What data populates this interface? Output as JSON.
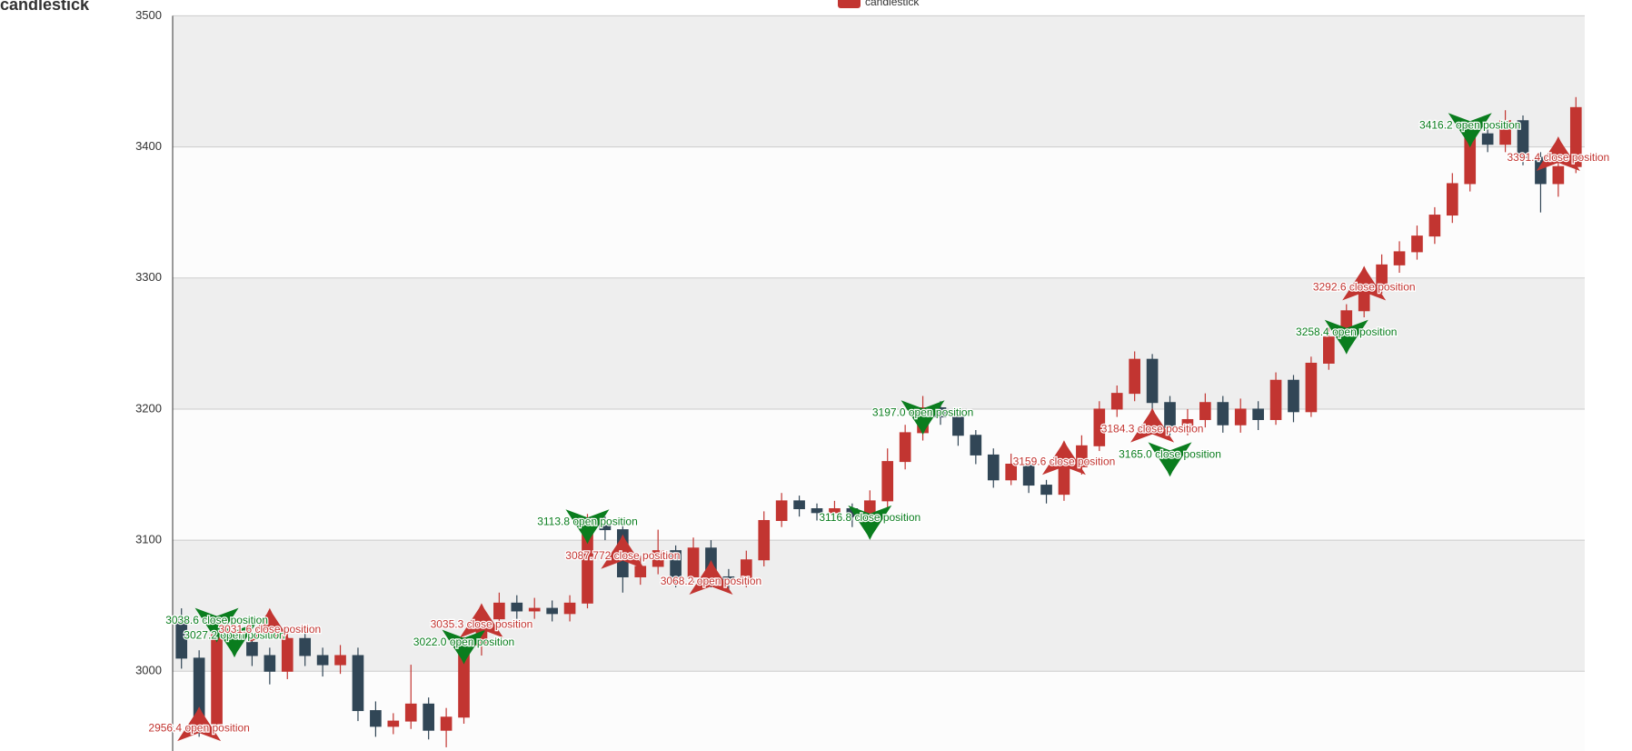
{
  "chart_data": {
    "type": "candlestick",
    "title": "candlestick",
    "legend": "top",
    "ylim": [
      2900,
      3500
    ],
    "yticks": [
      3000,
      3100,
      3200,
      3300,
      3400,
      3500
    ],
    "grid": true,
    "split_area": [
      "#eeeeee",
      "#fcfcfc"
    ],
    "series": [
      {
        "name": "candlestick",
        "color": "#c23531",
        "up_color": "#c23531",
        "down_color": "#314656",
        "values": [
          [
            3040,
            3048,
            3002,
            3010
          ],
          [
            3010,
            3016,
            2950,
            2960
          ],
          [
            2960,
            3036,
            2954,
            3030
          ],
          [
            3030,
            3040,
            3015,
            3022
          ],
          [
            3022,
            3030,
            3004,
            3012
          ],
          [
            3012,
            3018,
            2990,
            3000
          ],
          [
            3000,
            3033,
            2994,
            3025
          ],
          [
            3025,
            3031,
            3004,
            3012
          ],
          [
            3012,
            3018,
            2996,
            3005
          ],
          [
            3005,
            3020,
            2998,
            3012
          ],
          [
            3012,
            3018,
            2962,
            2970
          ],
          [
            2970,
            2977,
            2950,
            2958
          ],
          [
            2958,
            2968,
            2952,
            2962
          ],
          [
            2962,
            3005,
            2956,
            2975
          ],
          [
            2975,
            2980,
            2948,
            2955
          ],
          [
            2955,
            2972,
            2942,
            2965
          ],
          [
            2965,
            3026,
            2960,
            3020
          ],
          [
            3020,
            3048,
            3012,
            3040
          ],
          [
            3040,
            3060,
            3034,
            3052
          ],
          [
            3052,
            3058,
            3040,
            3046
          ],
          [
            3046,
            3056,
            3040,
            3048
          ],
          [
            3048,
            3054,
            3038,
            3044
          ],
          [
            3044,
            3058,
            3038,
            3052
          ],
          [
            3052,
            3120,
            3048,
            3112
          ],
          [
            3112,
            3118,
            3100,
            3108
          ],
          [
            3108,
            3112,
            3060,
            3072
          ],
          [
            3072,
            3088,
            3066,
            3080
          ],
          [
            3080,
            3108,
            3074,
            3092
          ],
          [
            3092,
            3096,
            3064,
            3072
          ],
          [
            3072,
            3102,
            3066,
            3094
          ],
          [
            3094,
            3100,
            3064,
            3072
          ],
          [
            3072,
            3078,
            3062,
            3070
          ],
          [
            3070,
            3092,
            3064,
            3085
          ],
          [
            3085,
            3122,
            3080,
            3115
          ],
          [
            3115,
            3136,
            3110,
            3130
          ],
          [
            3130,
            3134,
            3118,
            3124
          ],
          [
            3124,
            3128,
            3115,
            3121
          ],
          [
            3121,
            3130,
            3116,
            3124
          ],
          [
            3124,
            3128,
            3110,
            3118
          ],
          [
            3118,
            3138,
            3112,
            3130
          ],
          [
            3130,
            3170,
            3124,
            3160
          ],
          [
            3160,
            3188,
            3154,
            3182
          ],
          [
            3182,
            3210,
            3176,
            3201
          ],
          [
            3201,
            3206,
            3188,
            3194
          ],
          [
            3194,
            3198,
            3172,
            3180
          ],
          [
            3180,
            3184,
            3158,
            3165
          ],
          [
            3165,
            3170,
            3140,
            3146
          ],
          [
            3146,
            3166,
            3142,
            3158
          ],
          [
            3158,
            3162,
            3136,
            3142
          ],
          [
            3142,
            3146,
            3128,
            3135
          ],
          [
            3135,
            3162,
            3130,
            3156
          ],
          [
            3156,
            3180,
            3150,
            3172
          ],
          [
            3172,
            3206,
            3168,
            3200
          ],
          [
            3200,
            3218,
            3194,
            3212
          ],
          [
            3212,
            3244,
            3206,
            3238
          ],
          [
            3238,
            3242,
            3198,
            3205
          ],
          [
            3205,
            3210,
            3180,
            3186
          ],
          [
            3186,
            3200,
            3180,
            3192
          ],
          [
            3192,
            3212,
            3186,
            3205
          ],
          [
            3205,
            3210,
            3182,
            3188
          ],
          [
            3188,
            3208,
            3182,
            3200
          ],
          [
            3200,
            3206,
            3184,
            3192
          ],
          [
            3192,
            3228,
            3188,
            3222
          ],
          [
            3222,
            3226,
            3190,
            3198
          ],
          [
            3198,
            3240,
            3194,
            3235
          ],
          [
            3235,
            3262,
            3230,
            3255
          ],
          [
            3255,
            3280,
            3250,
            3275
          ],
          [
            3275,
            3302,
            3270,
            3294
          ],
          [
            3294,
            3318,
            3288,
            3310
          ],
          [
            3310,
            3328,
            3304,
            3320
          ],
          [
            3320,
            3340,
            3314,
            3332
          ],
          [
            3332,
            3354,
            3326,
            3348
          ],
          [
            3348,
            3380,
            3342,
            3372
          ],
          [
            3372,
            3418,
            3366,
            3410
          ],
          [
            3410,
            3414,
            3396,
            3402
          ],
          [
            3402,
            3428,
            3396,
            3420
          ],
          [
            3420,
            3424,
            3386,
            3392
          ],
          [
            3392,
            3396,
            3350,
            3372
          ],
          [
            3372,
            3392,
            3362,
            3385
          ],
          [
            3385,
            3438,
            3380,
            3430
          ]
        ]
      }
    ],
    "markers": [
      {
        "index": 1,
        "value": 2956.4,
        "label": "2956.4 open position",
        "color": "#c23531",
        "symbol": "arrow-up"
      },
      {
        "index": 2,
        "value": 3038.6,
        "label": "3038.6 close position",
        "color": "#0a7d1e",
        "symbol": "arrow-down"
      },
      {
        "index": 3,
        "value": 3027.2,
        "label": "3027.2 open position",
        "color": "#0a7d1e",
        "symbol": "arrow-down"
      },
      {
        "index": 5,
        "value": 3031.6,
        "label": "3031.6 close position",
        "color": "#c23531",
        "symbol": "arrow-up"
      },
      {
        "index": 16,
        "value": 3022.0,
        "label": "3022.0 open position",
        "color": "#0a7d1e",
        "symbol": "arrow-down"
      },
      {
        "index": 17,
        "value": 3035.3,
        "label": "3035.3 close position",
        "color": "#c23531",
        "symbol": "arrow-up"
      },
      {
        "index": 23,
        "value": 3113.8,
        "label": "3113.8 open position",
        "color": "#0a7d1e",
        "symbol": "arrow-down"
      },
      {
        "index": 25,
        "value": 3087.772,
        "label": "3087.772 close position",
        "color": "#c23531",
        "symbol": "arrow-up"
      },
      {
        "index": 30,
        "value": 3068.2,
        "label": "3068.2 open position",
        "color": "#c23531",
        "symbol": "arrow-up"
      },
      {
        "index": 39,
        "value": 3116.8,
        "label": "3116.8 close position",
        "color": "#0a7d1e",
        "symbol": "arrow-down"
      },
      {
        "index": 42,
        "value": 3197.0,
        "label": "3197.0 open position",
        "color": "#0a7d1e",
        "symbol": "arrow-down"
      },
      {
        "index": 50,
        "value": 3159.6,
        "label": "3159.6 close position",
        "color": "#c23531",
        "symbol": "arrow-up"
      },
      {
        "index": 55,
        "value": 3184.3,
        "label": "3184.3 close position",
        "color": "#c23531",
        "symbol": "arrow-up"
      },
      {
        "index": 56,
        "value": 3165.0,
        "label": "3165.0 close position",
        "color": "#0a7d1e",
        "symbol": "arrow-down"
      },
      {
        "index": 67,
        "value": 3292.6,
        "label": "3292.6 close position",
        "color": "#c23531",
        "symbol": "arrow-up"
      },
      {
        "index": 66,
        "value": 3258.4,
        "label": "3258.4 open position",
        "color": "#0a7d1e",
        "symbol": "arrow-down"
      },
      {
        "index": 73,
        "value": 3416.2,
        "label": "3416.2 open position",
        "color": "#0a7d1e",
        "symbol": "arrow-down"
      },
      {
        "index": 78,
        "value": 3391.4,
        "label": "3391.4 close position",
        "color": "#c23531",
        "symbol": "arrow-up"
      }
    ]
  }
}
